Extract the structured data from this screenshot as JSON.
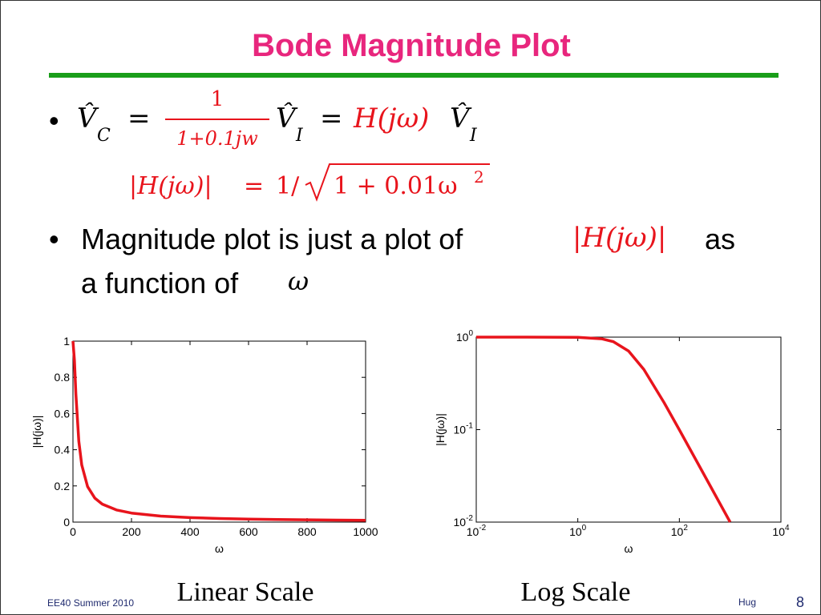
{
  "title": "Bode Magnitude Plot",
  "bullets": {
    "eq1": [
      "V̂",
      "C",
      "=",
      "1",
      "1+0.1jw",
      "V̂",
      "I",
      "=",
      "H(jω)",
      "V̂",
      "I"
    ],
    "eq2": [
      "|H(jω)|",
      "=",
      "1/",
      "1 + 0.01ω",
      "2"
    ],
    "text2": [
      "Magnitude plot is just a plot of",
      "|H(jω)|",
      "as",
      "a function of",
      "ω"
    ]
  },
  "captions": [
    "Linear Scale",
    "Log Scale"
  ],
  "footer": {
    "left": "EE40 Summer 2010",
    "author": "Hug",
    "page": "8"
  },
  "chart_data": [
    {
      "type": "line",
      "xlabel": "ω",
      "ylabel": "|H(jω)|",
      "color": "#e8141c",
      "x": [
        0,
        5,
        10,
        20,
        30,
        50,
        75,
        100,
        150,
        200,
        300,
        400,
        500,
        600,
        700,
        800,
        900,
        1000
      ],
      "values": [
        1,
        0.894,
        0.707,
        0.447,
        0.316,
        0.196,
        0.132,
        0.0995,
        0.0665,
        0.0499,
        0.0333,
        0.025,
        0.02,
        0.0167,
        0.0143,
        0.0125,
        0.0111,
        0.01
      ],
      "xlim": [
        0,
        1000
      ],
      "ylim": [
        0,
        1
      ],
      "xticks": [
        0,
        200,
        400,
        600,
        800,
        1000
      ],
      "yticks": [
        0,
        0.2,
        0.4,
        0.6,
        0.8,
        1
      ]
    },
    {
      "type": "line",
      "xlabel": "ω",
      "ylabel": "|H(jω)|",
      "color": "#e8141c",
      "xlog": true,
      "ylog": true,
      "x": [
        0.01,
        0.1,
        1,
        3,
        5,
        10,
        20,
        50,
        100,
        200,
        500,
        1000
      ],
      "values": [
        1,
        1,
        0.995,
        0.958,
        0.894,
        0.707,
        0.447,
        0.196,
        0.0995,
        0.0499,
        0.02,
        0.01
      ],
      "xlim": [
        0.01,
        10000
      ],
      "ylim": [
        0.01,
        1
      ],
      "xticks": [
        {
          "value": 0.01,
          "label": "10",
          "sup": "-2"
        },
        {
          "value": 1,
          "label": "10",
          "sup": "0"
        },
        {
          "value": 100,
          "label": "10",
          "sup": "2"
        },
        {
          "value": 10000,
          "label": "10",
          "sup": "4"
        }
      ],
      "yticks": [
        {
          "value": 0.01,
          "label": "10",
          "sup": "-2"
        },
        {
          "value": 0.1,
          "label": "10",
          "sup": "-1"
        },
        {
          "value": 1,
          "label": "10",
          "sup": "0"
        }
      ]
    }
  ]
}
